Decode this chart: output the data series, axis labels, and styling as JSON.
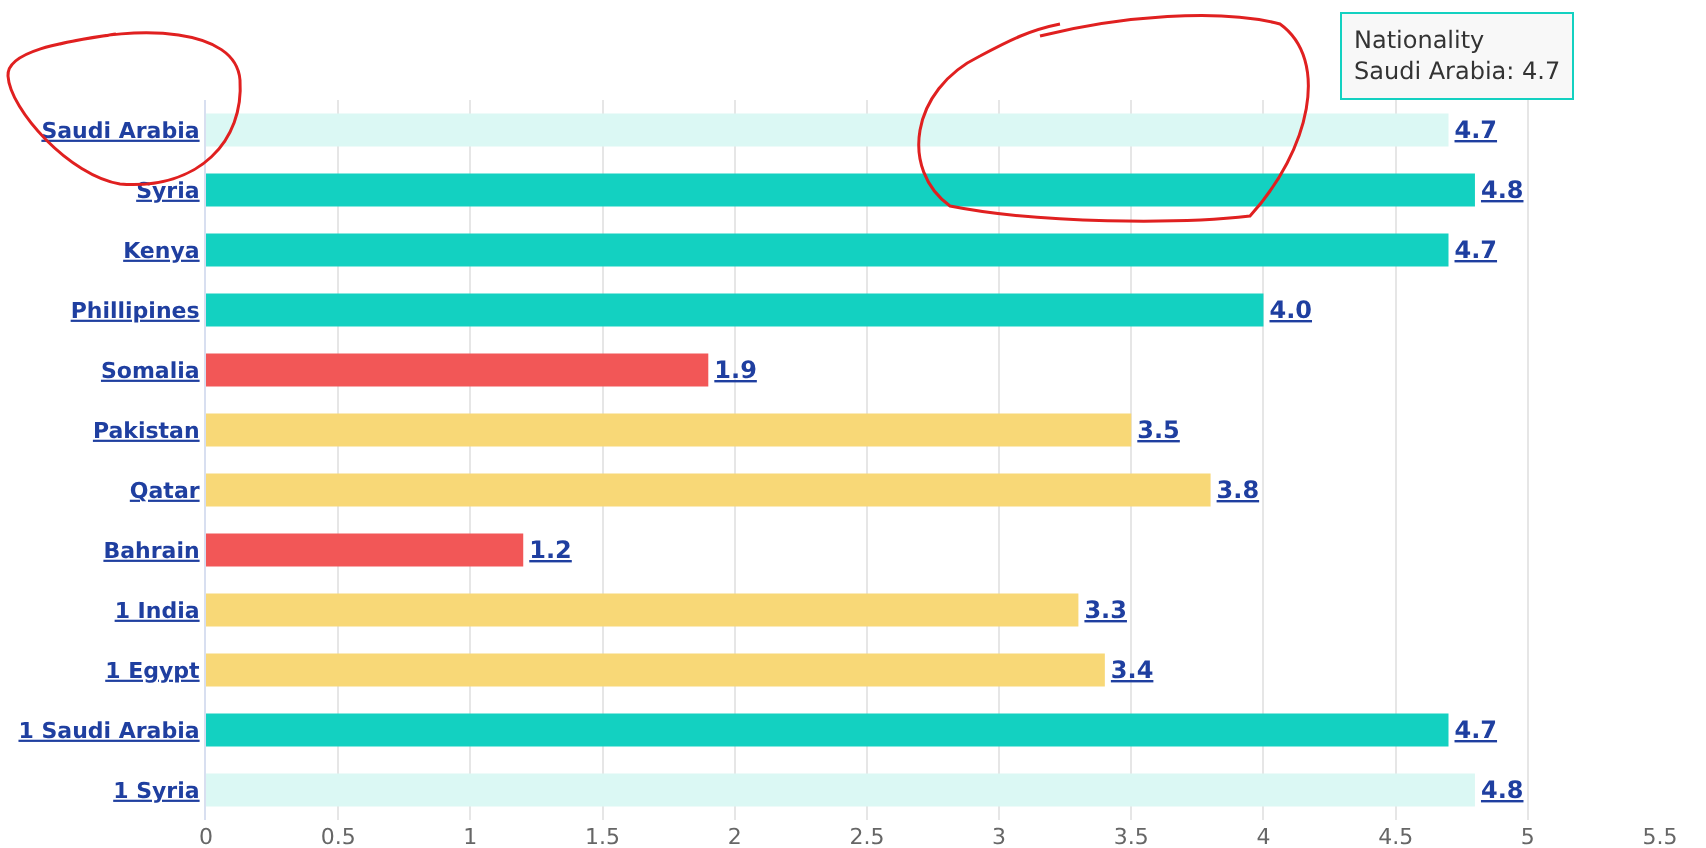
{
  "chart_data": {
    "type": "bar",
    "orientation": "horizontal",
    "categories": [
      "Saudi Arabia",
      "Syria",
      "Kenya",
      "Phillipines",
      "Somalia",
      "Pakistan",
      "Qatar",
      "Bahrain",
      "1 India",
      "1 Egypt",
      "1 Saudi Arabia",
      "1 Syria"
    ],
    "values": [
      4.7,
      4.8,
      4.7,
      4.0,
      1.9,
      3.5,
      3.8,
      1.2,
      3.3,
      3.4,
      4.7,
      4.8
    ],
    "value_labels": [
      "4.7",
      "4.8",
      "4.7",
      "4.0",
      "1.9",
      "3.5",
      "3.8",
      "1.2",
      "3.3",
      "3.4",
      "4.7",
      "4.8"
    ],
    "colors": [
      "#dbf8f4",
      "#13d1c1",
      "#13d1c1",
      "#13d1c1",
      "#f25757",
      "#f8d877",
      "#f8d877",
      "#f25757",
      "#f8d877",
      "#f8d877",
      "#13d1c1",
      "#dbf8f4"
    ],
    "xlim": [
      0,
      5.5
    ],
    "xticks": [
      0,
      0.5,
      1,
      1.5,
      2,
      2.5,
      3,
      3.5,
      4,
      4.5,
      5,
      5.5
    ],
    "grid": "x",
    "legend": false,
    "annotations": [
      "Nationality",
      "Saudi Arabia: 4.7"
    ]
  }
}
